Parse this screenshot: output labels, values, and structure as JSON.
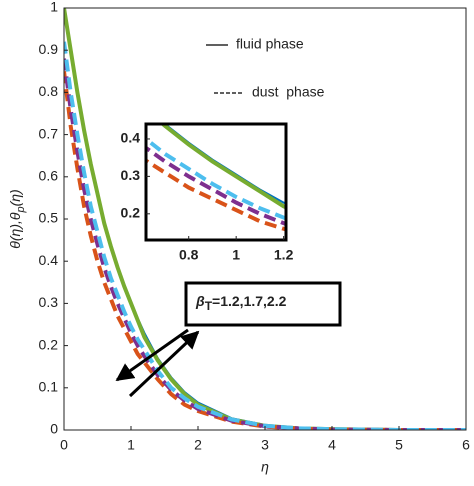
{
  "chart_data": {
    "type": "line",
    "x_label": "η",
    "y_label": {
      "text": "θ(η),θ",
      "subscript": "p",
      "suffix": "(η)"
    },
    "x": [
      0,
      0.1,
      0.2,
      0.3,
      0.4,
      0.5,
      0.6,
      0.7,
      0.8,
      0.9,
      1.0,
      1.1,
      1.2,
      1.4,
      1.6,
      1.8,
      2.0,
      2.5,
      3,
      3.5,
      4,
      5,
      6
    ],
    "series": [
      {
        "color": "#0072bd",
        "dash": "solid",
        "width": 2,
        "values": [
          1,
          0.9,
          0.8,
          0.71,
          0.63,
          0.56,
          0.49,
          0.44,
          0.39,
          0.345,
          0.305,
          0.265,
          0.23,
          0.17,
          0.125,
          0.09,
          0.065,
          0.028,
          0.012,
          0.005,
          0.002,
          0,
          0
        ]
      },
      {
        "color": "#77ac30",
        "dash": "solid",
        "width": 4,
        "values": [
          1,
          0.9,
          0.8,
          0.71,
          0.63,
          0.56,
          0.49,
          0.435,
          0.385,
          0.34,
          0.3,
          0.26,
          0.22,
          0.165,
          0.12,
          0.085,
          0.06,
          0.025,
          0.01,
          0.004,
          0.002,
          0,
          0
        ]
      },
      {
        "color": "#d95319",
        "dash": "dashed",
        "width": 4,
        "values": [
          0.85,
          0.72,
          0.62,
          0.53,
          0.46,
          0.4,
          0.35,
          0.31,
          0.27,
          0.24,
          0.21,
          0.18,
          0.16,
          0.12,
          0.085,
          0.06,
          0.045,
          0.02,
          0.008,
          0.003,
          0.001,
          0,
          0
        ]
      },
      {
        "color": "#7e2f8e",
        "dash": "dashed",
        "width": 4,
        "values": [
          0.88,
          0.76,
          0.66,
          0.57,
          0.5,
          0.44,
          0.385,
          0.34,
          0.3,
          0.265,
          0.23,
          0.2,
          0.175,
          0.13,
          0.095,
          0.07,
          0.05,
          0.022,
          0.009,
          0.004,
          0.001,
          0,
          0
        ]
      },
      {
        "color": "#4dbeee",
        "dash": "dashed",
        "width": 4,
        "values": [
          0.92,
          0.8,
          0.7,
          0.61,
          0.53,
          0.47,
          0.41,
          0.36,
          0.32,
          0.28,
          0.245,
          0.215,
          0.19,
          0.14,
          0.1,
          0.075,
          0.055,
          0.025,
          0.01,
          0.004,
          0.002,
          0,
          0
        ]
      }
    ],
    "xlim": [
      0,
      6
    ],
    "ylim": [
      0,
      1
    ],
    "xticks": [
      0,
      1,
      2,
      3,
      4,
      5,
      6
    ],
    "yticks": [
      0,
      0.1,
      0.2,
      0.3,
      0.4,
      0.5,
      0.6,
      0.7,
      0.8,
      0.9,
      1
    ],
    "legend": [
      {
        "label": "fluid phase",
        "dash": "solid"
      },
      {
        "label": "dust  phase",
        "dash": "dashed"
      }
    ],
    "annotation": {
      "text": "β",
      "subscript": "T",
      "suffix": "=1.2,1.7,2.2"
    },
    "inset": {
      "xlim": [
        0.62,
        1.21
      ],
      "ylim": [
        0.13,
        0.44
      ],
      "xticks": [
        0.8,
        1,
        1.2
      ],
      "yticks": [
        0.2,
        0.3,
        0.4
      ]
    }
  }
}
